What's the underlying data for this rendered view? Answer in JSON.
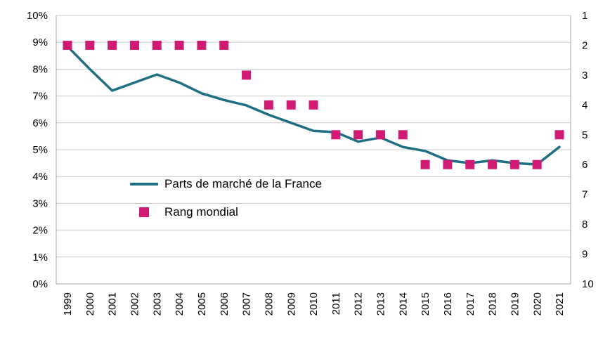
{
  "chart_data": {
    "type": "line",
    "categories": [
      "1999",
      "2000",
      "2001",
      "2002",
      "2003",
      "2004",
      "2005",
      "2006",
      "2007",
      "2008",
      "2009",
      "2010",
      "2011",
      "2012",
      "2013",
      "2014",
      "2015",
      "2016",
      "2017",
      "2018",
      "2019",
      "2020",
      "2021"
    ],
    "series": [
      {
        "name": "Parts de marché de la France",
        "type": "line",
        "axis": "left",
        "unit": "%",
        "values": [
          8.85,
          8.0,
          7.2,
          7.5,
          7.8,
          7.5,
          7.1,
          6.85,
          6.65,
          6.3,
          6.0,
          5.7,
          5.65,
          5.3,
          5.45,
          5.1,
          4.95,
          4.6,
          4.5,
          4.6,
          4.5,
          4.45,
          5.1
        ]
      },
      {
        "name": "Rang mondial",
        "type": "square-marker",
        "axis": "right",
        "values": [
          2,
          2,
          2,
          2,
          2,
          2,
          2,
          2,
          3,
          4,
          4,
          4,
          5,
          5,
          5,
          5,
          6,
          6,
          6,
          6,
          6,
          6,
          5
        ]
      }
    ],
    "left_axis": {
      "labels": [
        "0%",
        "1%",
        "2%",
        "3%",
        "4%",
        "5%",
        "6%",
        "7%",
        "8%",
        "9%",
        "10%"
      ],
      "min": 0,
      "max": 10
    },
    "right_axis": {
      "labels": [
        "1",
        "2",
        "3",
        "4",
        "5",
        "6",
        "7",
        "8",
        "9",
        "10"
      ],
      "min": 1,
      "max": 10,
      "inverted": true
    },
    "grid": true,
    "legend_position": "inside-left",
    "title": ""
  },
  "legend": {
    "items": [
      {
        "label": "Parts de marché de la France"
      },
      {
        "label": "Rang mondial"
      }
    ]
  },
  "colors": {
    "line": "#1f6e84",
    "marker": "#d01a74",
    "grid": "#c9c9c9",
    "axis": "#a6a6a6",
    "text": "#000000",
    "background": "#ffffff"
  }
}
